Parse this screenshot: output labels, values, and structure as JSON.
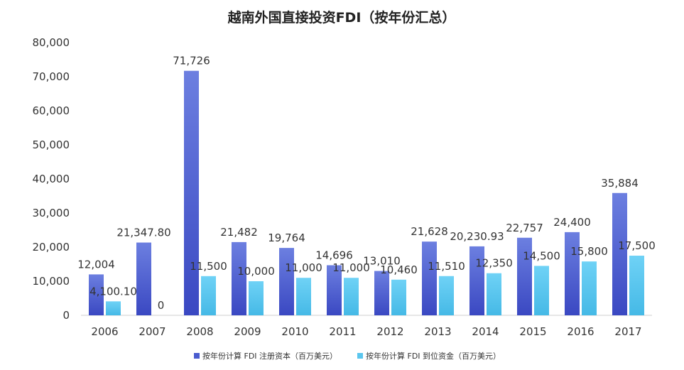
{
  "chart_data": {
    "type": "bar",
    "title": "越南外国直接投资FDI（按年份汇总）",
    "xlabel": "",
    "ylabel": "",
    "ylim": [
      0,
      80000
    ],
    "yticks": [
      0,
      10000,
      20000,
      30000,
      40000,
      50000,
      60000,
      70000,
      80000
    ],
    "ytick_labels": [
      "0",
      "10,000",
      "20,000",
      "30,000",
      "40,000",
      "50,000",
      "60,000",
      "70,000",
      "80,000"
    ],
    "grid": false,
    "legend_position": "bottom",
    "categories": [
      "2006",
      "2007",
      "2008",
      "2009",
      "2010",
      "2011",
      "2012",
      "2013",
      "2014",
      "2015",
      "2016",
      "2017"
    ],
    "series": [
      {
        "name": "按年份计算 FDI 注册资本（百万美元）",
        "color": "#4a5ccf",
        "values": [
          12004,
          21347.8,
          71726,
          21482,
          19764,
          14696,
          13010,
          21628,
          20230.93,
          22757,
          24400,
          35884
        ],
        "labels": [
          "12,004",
          "21,347.80",
          "71,726",
          "21,482",
          "19,764",
          "14,696",
          "13,010",
          "21,628",
          "20,230.93",
          "22,757",
          "24,400",
          "35,884"
        ]
      },
      {
        "name": "按年份计算 FDI 到位资金（百万美元）",
        "color": "#5bc6ee",
        "values": [
          4100.1,
          0,
          11500,
          10000,
          11000,
          11000,
          10460,
          11510,
          12350,
          14500,
          15800,
          17500
        ],
        "labels": [
          "4,100.10",
          "0",
          "11,500",
          "10,000",
          "11,000",
          "11,000",
          "10,460",
          "11,510",
          "12,350",
          "14,500",
          "15,800",
          "17,500"
        ]
      }
    ]
  }
}
